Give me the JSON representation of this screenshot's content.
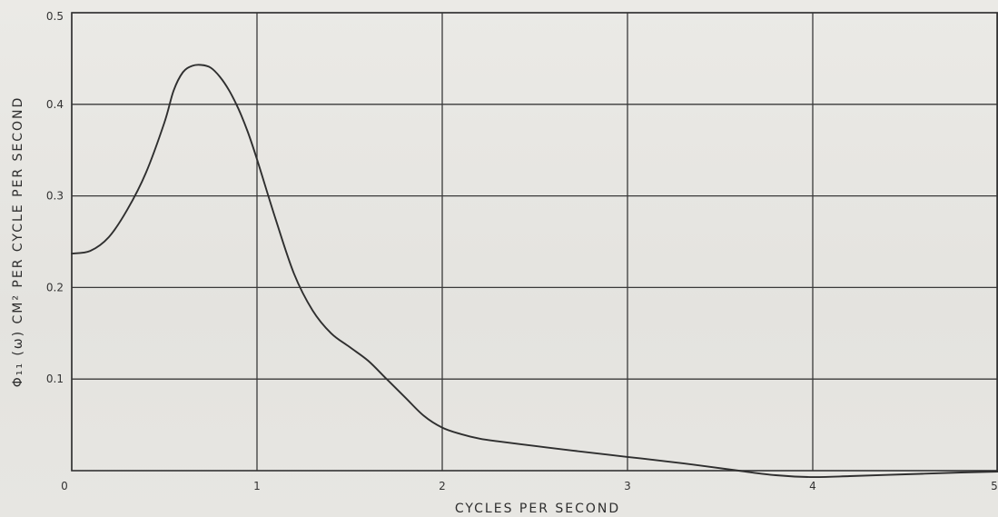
{
  "chart_data": {
    "type": "line",
    "xlabel": "CYCLES PER SECOND",
    "ylabel": "Φ₁₁ (ω) CM² PER CYCLE PER SECOND",
    "xlim": [
      0,
      5
    ],
    "ylim": [
      0,
      0.5
    ],
    "x_ticks": [
      0,
      1,
      2,
      3,
      4,
      5
    ],
    "x_tick_labels": [
      "0",
      "1",
      "2",
      "3",
      "4",
      "5"
    ],
    "y_ticks": [
      0.1,
      0.2,
      0.3,
      0.4,
      0.5
    ],
    "y_tick_labels": [
      "0.1",
      "0.2",
      "0.3",
      "0.4",
      "0.5"
    ],
    "grid": true,
    "series": [
      {
        "x": [
          0,
          0.1,
          0.2,
          0.3,
          0.4,
          0.5,
          0.55,
          0.6,
          0.65,
          0.7,
          0.75,
          0.8,
          0.85,
          0.9,
          0.95,
          1.0,
          1.1,
          1.2,
          1.3,
          1.4,
          1.5,
          1.6,
          1.7,
          1.8,
          1.9,
          2.0,
          2.1,
          2.2,
          2.3,
          2.5,
          2.7,
          3.0,
          3.3,
          3.6,
          3.8,
          4.0,
          4.2,
          4.5,
          4.8,
          5.0
        ],
        "y": [
          0.237,
          0.24,
          0.255,
          0.285,
          0.325,
          0.38,
          0.415,
          0.435,
          0.442,
          0.443,
          0.44,
          0.43,
          0.415,
          0.395,
          0.37,
          0.34,
          0.275,
          0.215,
          0.175,
          0.15,
          0.135,
          0.12,
          0.1,
          0.08,
          0.06,
          0.047,
          0.04,
          0.035,
          0.032,
          0.027,
          0.022,
          0.015,
          0.008,
          0.0,
          -0.005,
          -0.007,
          -0.006,
          -0.004,
          -0.002,
          -0.001
        ]
      }
    ]
  }
}
